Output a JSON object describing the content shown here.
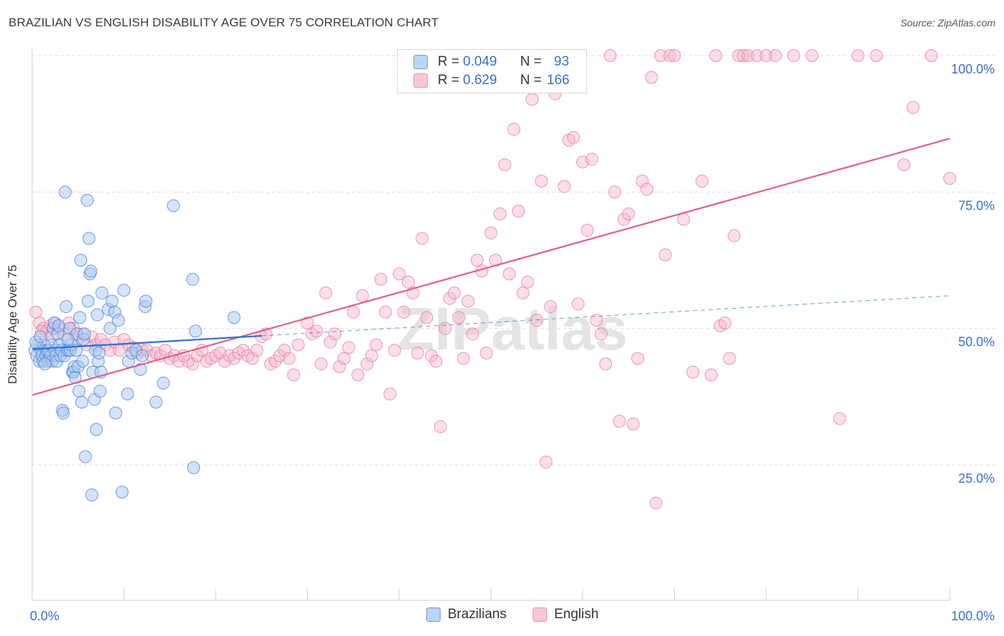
{
  "title": "BRAZILIAN VS ENGLISH DISABILITY AGE OVER 75 CORRELATION CHART",
  "source": "Source: ZipAtlas.com",
  "watermark": "ZIPatlas",
  "legend": {
    "rows": [
      {
        "r_label": "R = ",
        "r_value": "0.049",
        "n_label": "N = ",
        "n_value": "93"
      },
      {
        "r_label": "R = ",
        "r_value": "0.629",
        "n_label": "N = ",
        "n_value": "166"
      }
    ]
  },
  "bottom_legend": [
    "Brazilians",
    "English"
  ],
  "colors": {
    "blue_fill": "#a9c8f0",
    "blue_stroke": "#4f86d8",
    "blue_line": "#2f6fd0",
    "pink_fill": "#f7b6cb",
    "pink_stroke": "#e07a9c",
    "pink_line": "#e0608e",
    "tick_label": "#3d6fc4",
    "grid": "#dcdcdc"
  },
  "chart_data": {
    "type": "scatter",
    "ylabel": "Disability Age Over 75",
    "xlim": [
      0,
      100
    ],
    "ylim": [
      0,
      105
    ],
    "x_tick_labels": [
      "0.0%",
      "100.0%"
    ],
    "y_ticks": [
      25,
      50,
      75,
      100
    ],
    "y_tick_labels": [
      "25.0%",
      "50.0%",
      "75.0%",
      "100.0%"
    ],
    "grid": true,
    "series": [
      {
        "name": "Brazilians",
        "trend": {
          "x0": 0,
          "y0": 46.2,
          "x1": 100,
          "y1": 56.0,
          "solid_until": 25
        },
        "points": [
          [
            0.3,
            46
          ],
          [
            0.5,
            45
          ],
          [
            0.6,
            47
          ],
          [
            0.8,
            44
          ],
          [
            1.0,
            46
          ],
          [
            1.1,
            45
          ],
          [
            1.2,
            44
          ],
          [
            1.3,
            47
          ],
          [
            1.5,
            45
          ],
          [
            1.6,
            46
          ],
          [
            1.7,
            44
          ],
          [
            1.8,
            46
          ],
          [
            2.0,
            45
          ],
          [
            2.1,
            47
          ],
          [
            2.2,
            44
          ],
          [
            2.3,
            50
          ],
          [
            2.4,
            51
          ],
          [
            2.5,
            46
          ],
          [
            2.6,
            45
          ],
          [
            2.7,
            44
          ],
          [
            2.8,
            49
          ],
          [
            3.0,
            47
          ],
          [
            3.1,
            45
          ],
          [
            3.2,
            46
          ],
          [
            3.3,
            35
          ],
          [
            3.4,
            34.5
          ],
          [
            3.5,
            45
          ],
          [
            3.6,
            75
          ],
          [
            3.7,
            54
          ],
          [
            3.8,
            46
          ],
          [
            4.0,
            46
          ],
          [
            4.1,
            50
          ],
          [
            4.2,
            46
          ],
          [
            4.3,
            47
          ],
          [
            4.4,
            42
          ],
          [
            4.5,
            42
          ],
          [
            4.6,
            43
          ],
          [
            4.7,
            41
          ],
          [
            4.8,
            46
          ],
          [
            4.9,
            49
          ],
          [
            5.0,
            43
          ],
          [
            5.1,
            38.5
          ],
          [
            5.2,
            52
          ],
          [
            5.3,
            62.5
          ],
          [
            5.4,
            36.5
          ],
          [
            5.5,
            44
          ],
          [
            5.6,
            48
          ],
          [
            5.7,
            49
          ],
          [
            5.8,
            26.5
          ],
          [
            6.0,
            73.5
          ],
          [
            6.1,
            55
          ],
          [
            6.2,
            66.5
          ],
          [
            6.3,
            60
          ],
          [
            6.4,
            60.5
          ],
          [
            6.5,
            19.5
          ],
          [
            6.6,
            42
          ],
          [
            6.8,
            37
          ],
          [
            6.9,
            46
          ],
          [
            7.0,
            31.5
          ],
          [
            7.1,
            52.5
          ],
          [
            7.2,
            44
          ],
          [
            7.3,
            45.5
          ],
          [
            7.4,
            38.5
          ],
          [
            7.5,
            42
          ],
          [
            7.6,
            56.5
          ],
          [
            8.3,
            53.5
          ],
          [
            8.5,
            50
          ],
          [
            8.7,
            55
          ],
          [
            9.0,
            53
          ],
          [
            9.1,
            34.5
          ],
          [
            9.4,
            51.5
          ],
          [
            9.8,
            20
          ],
          [
            10.0,
            57
          ],
          [
            10.4,
            38
          ],
          [
            10.5,
            44
          ],
          [
            10.9,
            45.5
          ],
          [
            11.3,
            46
          ],
          [
            11.8,
            42.5
          ],
          [
            12.0,
            45
          ],
          [
            12.3,
            54
          ],
          [
            12.4,
            55
          ],
          [
            13.5,
            36.5
          ],
          [
            14.3,
            40
          ],
          [
            15.4,
            72.5
          ],
          [
            17.5,
            59
          ],
          [
            17.6,
            24.5
          ],
          [
            17.8,
            49.5
          ],
          [
            22.0,
            52
          ],
          [
            0.4,
            47.5
          ],
          [
            0.9,
            48.5
          ],
          [
            1.4,
            43.5
          ],
          [
            2.9,
            50.5
          ],
          [
            3.9,
            48
          ]
        ]
      },
      {
        "name": "English",
        "trend": {
          "x0": 0,
          "y0": 37.8,
          "x1": 100,
          "y1": 84.8
        },
        "points": [
          [
            0.4,
            53
          ],
          [
            0.8,
            51
          ],
          [
            1.2,
            50
          ],
          [
            1.6,
            49.5
          ],
          [
            2.0,
            50.5
          ],
          [
            2.5,
            51
          ],
          [
            3.0,
            50
          ],
          [
            3.5,
            49
          ],
          [
            4.0,
            51
          ],
          [
            4.5,
            50
          ],
          [
            5.0,
            48
          ],
          [
            5.5,
            49
          ],
          [
            6.0,
            47
          ],
          [
            6.5,
            48.5
          ],
          [
            7.0,
            47
          ],
          [
            7.5,
            48
          ],
          [
            8.0,
            47
          ],
          [
            8.5,
            46
          ],
          [
            9.0,
            47.5
          ],
          [
            9.5,
            46
          ],
          [
            10.0,
            48
          ],
          [
            10.5,
            47
          ],
          [
            11.0,
            46.5
          ],
          [
            11.5,
            45.5
          ],
          [
            12.0,
            46
          ],
          [
            12.5,
            46
          ],
          [
            13.0,
            45
          ],
          [
            13.5,
            45.5
          ],
          [
            14.0,
            45
          ],
          [
            14.5,
            46
          ],
          [
            15.0,
            44.5
          ],
          [
            15.5,
            45
          ],
          [
            16.0,
            44
          ],
          [
            16.5,
            45
          ],
          [
            17.0,
            44
          ],
          [
            17.5,
            43.5
          ],
          [
            18.0,
            45
          ],
          [
            18.5,
            46
          ],
          [
            19.0,
            44
          ],
          [
            19.5,
            44.5
          ],
          [
            20.0,
            45
          ],
          [
            20.5,
            45.5
          ],
          [
            21.0,
            44
          ],
          [
            21.5,
            45
          ],
          [
            22.0,
            44.5
          ],
          [
            22.5,
            45.5
          ],
          [
            23.0,
            46
          ],
          [
            23.5,
            45
          ],
          [
            24.0,
            44.5
          ],
          [
            24.5,
            46
          ],
          [
            25.0,
            48.5
          ],
          [
            25.5,
            49
          ],
          [
            26.0,
            43.5
          ],
          [
            26.5,
            44
          ],
          [
            27.0,
            45
          ],
          [
            27.5,
            46
          ],
          [
            28.0,
            44.5
          ],
          [
            28.5,
            41.5
          ],
          [
            29.0,
            47
          ],
          [
            30.0,
            51
          ],
          [
            30.5,
            49
          ],
          [
            31.0,
            49.5
          ],
          [
            31.5,
            43.5
          ],
          [
            32.0,
            56.5
          ],
          [
            32.5,
            47.5
          ],
          [
            33.0,
            49
          ],
          [
            33.5,
            43
          ],
          [
            34.0,
            44.5
          ],
          [
            34.5,
            46.5
          ],
          [
            35.0,
            53
          ],
          [
            35.5,
            41.5
          ],
          [
            36.0,
            56
          ],
          [
            36.5,
            43.5
          ],
          [
            37.0,
            45
          ],
          [
            37.5,
            47
          ],
          [
            38.0,
            59
          ],
          [
            38.5,
            53
          ],
          [
            39.0,
            38
          ],
          [
            39.5,
            46
          ],
          [
            40.0,
            60
          ],
          [
            40.5,
            53
          ],
          [
            41.0,
            58.5
          ],
          [
            41.5,
            56.5
          ],
          [
            42.0,
            45.5
          ],
          [
            42.5,
            66.5
          ],
          [
            43.0,
            52
          ],
          [
            43.5,
            45
          ],
          [
            44.0,
            44
          ],
          [
            44.5,
            32
          ],
          [
            45.0,
            50
          ],
          [
            45.5,
            55.5
          ],
          [
            46.0,
            56.5
          ],
          [
            46.5,
            52
          ],
          [
            47.0,
            44.5
          ],
          [
            47.5,
            55
          ],
          [
            48.0,
            49
          ],
          [
            48.5,
            62.5
          ],
          [
            49.0,
            60.5
          ],
          [
            49.5,
            45.5
          ],
          [
            50.0,
            67.5
          ],
          [
            50.5,
            62.5
          ],
          [
            51.0,
            71
          ],
          [
            51.5,
            80
          ],
          [
            52.0,
            60
          ],
          [
            52.5,
            86.5
          ],
          [
            53.0,
            71.5
          ],
          [
            53.5,
            56.5
          ],
          [
            54.0,
            58.5
          ],
          [
            54.5,
            92
          ],
          [
            55.0,
            51.5
          ],
          [
            55.5,
            77
          ],
          [
            56.0,
            25.5
          ],
          [
            56.5,
            54
          ],
          [
            57.0,
            93
          ],
          [
            58.0,
            76
          ],
          [
            58.5,
            84.5
          ],
          [
            59.0,
            85
          ],
          [
            59.5,
            54.5
          ],
          [
            60.0,
            80.5
          ],
          [
            60.5,
            68
          ],
          [
            61.0,
            81
          ],
          [
            61.5,
            51.5
          ],
          [
            62.0,
            49
          ],
          [
            62.5,
            43.5
          ],
          [
            63.0,
            100
          ],
          [
            63.5,
            75
          ],
          [
            64.0,
            33
          ],
          [
            64.5,
            70
          ],
          [
            65.0,
            71
          ],
          [
            65.5,
            32.5
          ],
          [
            66.0,
            44.5
          ],
          [
            66.5,
            77
          ],
          [
            67.0,
            75.5
          ],
          [
            67.5,
            96
          ],
          [
            68.0,
            18
          ],
          [
            68.5,
            100
          ],
          [
            69.0,
            63.5
          ],
          [
            69.5,
            100
          ],
          [
            70.0,
            100
          ],
          [
            71.0,
            70
          ],
          [
            72.0,
            42
          ],
          [
            73.0,
            77
          ],
          [
            74.0,
            41.5
          ],
          [
            74.5,
            100
          ],
          [
            75.0,
            50.5
          ],
          [
            75.5,
            51
          ],
          [
            76.0,
            44.5
          ],
          [
            76.5,
            67
          ],
          [
            77.0,
            100
          ],
          [
            77.5,
            100
          ],
          [
            78.0,
            100
          ],
          [
            79.0,
            100
          ],
          [
            80.0,
            100
          ],
          [
            81.0,
            100
          ],
          [
            83.0,
            100
          ],
          [
            85.0,
            100
          ],
          [
            88.0,
            33.5
          ],
          [
            90.0,
            100
          ],
          [
            92.0,
            100
          ],
          [
            95.0,
            80
          ],
          [
            96.0,
            90.5
          ],
          [
            98.0,
            100
          ],
          [
            100.0,
            77.5
          ],
          [
            1.0,
            49.5
          ],
          [
            2.2,
            48.5
          ],
          [
            4.8,
            49
          ]
        ]
      }
    ]
  }
}
